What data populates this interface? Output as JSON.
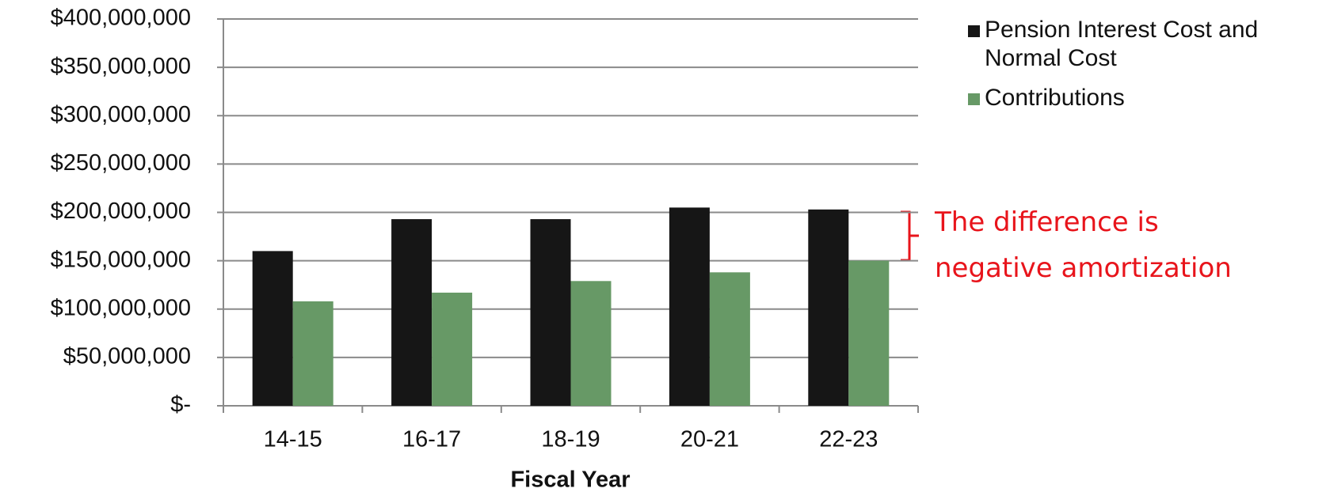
{
  "chart_data": {
    "type": "bar",
    "x_label": "Fiscal Year",
    "categories": [
      "14-15",
      "16-17",
      "18-19",
      "20-21",
      "22-23"
    ],
    "series": [
      {
        "name": "Pension Interest Cost and Normal Cost",
        "color": "#161616",
        "values": [
          160000000,
          193000000,
          193000000,
          205000000,
          203000000
        ]
      },
      {
        "name": "Contributions",
        "color": "#679966",
        "values": [
          108000000,
          117000000,
          129000000,
          138000000,
          150000000
        ]
      }
    ],
    "ylim": [
      0,
      400000000
    ],
    "yticks": [
      {
        "value": 0,
        "label": "$-"
      },
      {
        "value": 50000000,
        "label": "$50,000,000"
      },
      {
        "value": 100000000,
        "label": "$100,000,000"
      },
      {
        "value": 150000000,
        "label": "$150,000,000"
      },
      {
        "value": 200000000,
        "label": "$200,000,000"
      },
      {
        "value": 250000000,
        "label": "$250,000,000"
      },
      {
        "value": 300000000,
        "label": "$300,000,000"
      },
      {
        "value": 350000000,
        "label": "$350,000,000"
      },
      {
        "value": 400000000,
        "label": "$400,000,000"
      }
    ],
    "grid": true,
    "legend": "right",
    "annotation": "The difference is negative amortization",
    "annotation_color": "#e8141b"
  }
}
